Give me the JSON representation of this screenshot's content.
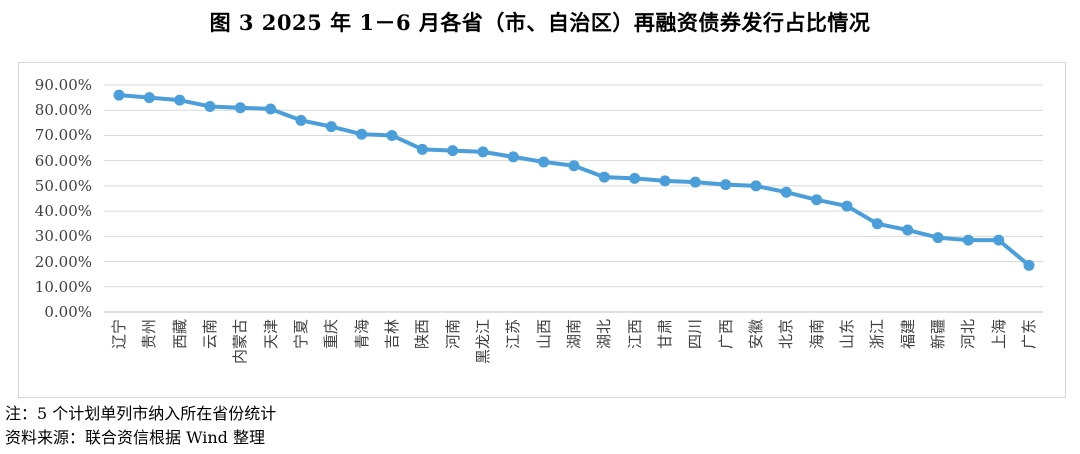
{
  "figure": {
    "title": "图 3  2025 年 1－6 月各省（市、自治区）再融资债券发行占比情况"
  },
  "notes": [
    "注：5 个计划单列市纳入所在省份统计",
    "资料来源：联合资信根据 Wind 整理"
  ],
  "colors": {
    "line": "#4a9eda",
    "marker": "#4a9eda",
    "gridline": "#d9d9d9",
    "axis_line": "#bfbfbf",
    "tick_label": "#3f3f3f",
    "border": "#d7d7d7"
  },
  "chart_data": {
    "type": "line",
    "title": "图 3  2025 年 1－6 月各省（市、自治区）再融资债券发行占比情况",
    "xlabel": "",
    "ylabel": "",
    "legend": "none",
    "grid": true,
    "ylim": [
      0,
      90
    ],
    "ytick_step": 10,
    "y_tick_labels": [
      "0.00%",
      "10.00%",
      "20.00%",
      "30.00%",
      "40.00%",
      "50.00%",
      "60.00%",
      "70.00%",
      "80.00%",
      "90.00%"
    ],
    "categories": [
      "辽宁",
      "贵州",
      "西藏",
      "云南",
      "内蒙古",
      "天津",
      "宁夏",
      "重庆",
      "青海",
      "吉林",
      "陕西",
      "河南",
      "黑龙江",
      "江苏",
      "山西",
      "湖南",
      "湖北",
      "江西",
      "甘肃",
      "四川",
      "广西",
      "安徽",
      "北京",
      "海南",
      "山东",
      "浙江",
      "福建",
      "新疆",
      "河北",
      "上海",
      "广东"
    ],
    "values": [
      86,
      85,
      84,
      81.5,
      81,
      80.5,
      76,
      73.5,
      70.5,
      70,
      64.5,
      64,
      63.5,
      61.5,
      59.5,
      58,
      53.5,
      53,
      52,
      51.5,
      50.5,
      50,
      47.5,
      44.5,
      42,
      35,
      32.5,
      29.5,
      28.5,
      28.5,
      18.5
    ]
  }
}
